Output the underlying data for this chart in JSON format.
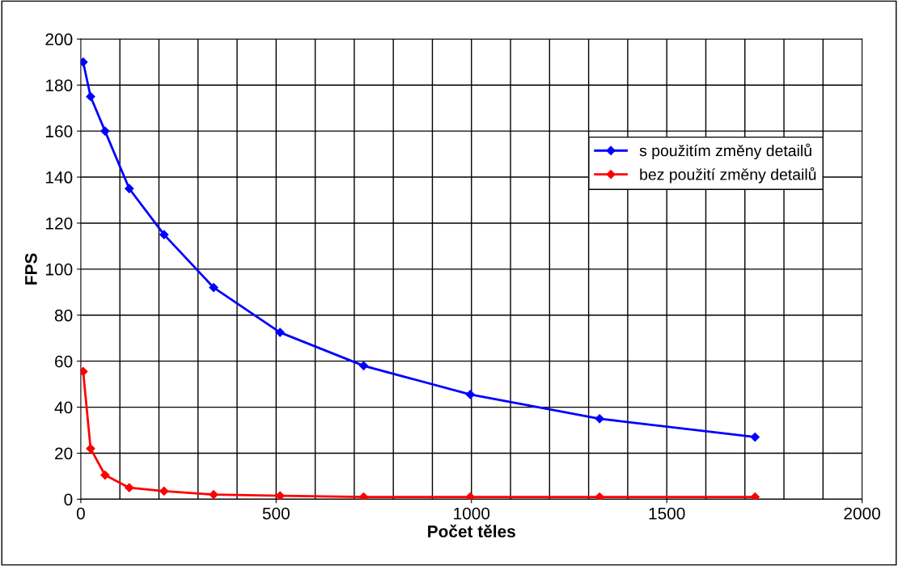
{
  "chart_data": {
    "type": "line",
    "xlabel": "Počet těles",
    "ylabel": "FPS",
    "xlim": [
      0,
      2000
    ],
    "xticks": [
      0,
      500,
      1000,
      1500,
      2000
    ],
    "ylim": [
      0,
      200
    ],
    "yticks": [
      0,
      20,
      40,
      60,
      80,
      100,
      120,
      140,
      160,
      180,
      200
    ],
    "grid": true,
    "legend": "center right",
    "marker": "diamond",
    "line_style": "solid",
    "series": [
      {
        "name": "s použitím změny detailů",
        "color": "#0000ff",
        "x": [
          6,
          25,
          62,
          124,
          213,
          340,
          510,
          724,
          997,
          1328,
          1726
        ],
        "values": [
          190,
          175,
          160,
          135,
          115,
          92,
          72.5,
          58,
          45.5,
          35,
          27
        ]
      },
      {
        "name": "bez použití změny detailů",
        "color": "#ff0000",
        "x": [
          6,
          25,
          62,
          124,
          213,
          340,
          510,
          724,
          997,
          1328,
          1726
        ],
        "values": [
          55.5,
          22,
          10.5,
          5,
          3.5,
          2,
          1.5,
          1,
          1,
          1,
          1
        ]
      }
    ]
  }
}
